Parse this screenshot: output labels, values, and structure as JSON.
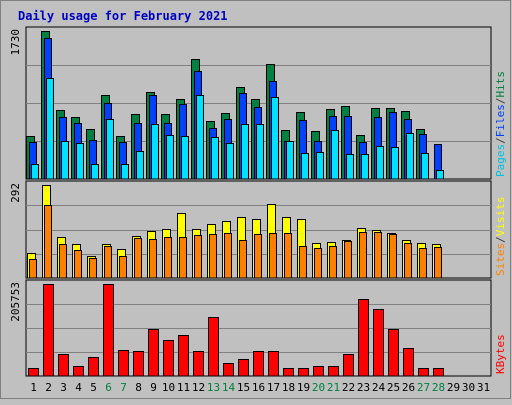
{
  "chart_data": {
    "type": "bar",
    "title": "Daily usage for February 2021",
    "x": {
      "days": [
        "1",
        "2",
        "3",
        "4",
        "5",
        "6",
        "7",
        "8",
        "9",
        "10",
        "11",
        "12",
        "13",
        "14",
        "15",
        "16",
        "17",
        "18",
        "19",
        "20",
        "21",
        "22",
        "23",
        "24",
        "25",
        "26",
        "27",
        "28",
        "29",
        "30",
        "31"
      ],
      "weekend_days": [
        "6",
        "7",
        "13",
        "14",
        "20",
        "21",
        "27",
        "28"
      ]
    },
    "panels": [
      {
        "id": "hits-files-pages",
        "max_label": "1730",
        "ylim": [
          0,
          1730
        ],
        "grid": true,
        "legend": [
          {
            "text": "Pages",
            "color": "#00c0e0"
          },
          {
            "text": "/",
            "color": "#404040"
          },
          {
            "text": "Files",
            "color": "#0040ff"
          },
          {
            "text": "/",
            "color": "#404040"
          },
          {
            "text": "Hits",
            "color": "#008040"
          }
        ],
        "series": [
          {
            "name": "Hits",
            "color": "#008040",
            "values": [
              500,
              1730,
              810,
              730,
              580,
              980,
              500,
              760,
              1020,
              760,
              940,
              1400,
              680,
              770,
              1080,
              930,
              1350,
              570,
              780,
              560,
              820,
              850,
              520,
              830,
              830,
              790,
              590,
              null,
              null,
              null,
              null
            ]
          },
          {
            "name": "Files",
            "color": "#0040ff",
            "values": [
              430,
              1650,
              720,
              650,
              460,
              890,
              430,
              650,
              980,
              650,
              880,
              1260,
              600,
              700,
              1000,
              840,
              1150,
              450,
              690,
              450,
              740,
              740,
              430,
              720,
              780,
              700,
              530,
              410,
              null,
              null,
              null
            ]
          },
          {
            "name": "Pages",
            "color": "#00e0ff",
            "values": [
              180,
              1180,
              440,
              420,
              170,
              700,
              170,
              330,
              640,
              510,
              500,
              980,
              490,
              420,
              640,
              640,
              960,
              440,
              300,
              310,
              570,
              290,
              290,
              380,
              370,
              540,
              300,
              110,
              null,
              null,
              null
            ]
          }
        ]
      },
      {
        "id": "visits-sites",
        "max_label": "292",
        "ylim": [
          0,
          292
        ],
        "grid": true,
        "legend": [
          {
            "text": "Sites",
            "color": "#ff8000"
          },
          {
            "text": "/",
            "color": "#404040"
          },
          {
            "text": "Visits",
            "color": "#ffff00"
          }
        ],
        "series": [
          {
            "name": "Visits",
            "color": "#ffff00",
            "values": [
              80,
              292,
              128,
              108,
              70,
              108,
              92,
              132,
              148,
              155,
              205,
              155,
              170,
              178,
              192,
              185,
              232,
              190,
              185,
              110,
              112,
              120,
              158,
              152,
              140,
              120,
              110,
              108,
              null,
              null,
              null
            ]
          },
          {
            "name": "Sites",
            "color": "#ff8000",
            "values": [
              60,
              230,
              108,
              88,
              62,
              100,
              70,
              125,
              122,
              128,
              130,
              135,
              138,
              140,
              118,
              138,
              142,
              140,
              100,
              95,
              100,
              115,
              145,
              145,
              138,
              110,
              95,
              97,
              null,
              null,
              null
            ]
          }
        ]
      },
      {
        "id": "kbytes",
        "max_label": "205753",
        "ylim": [
          0,
          205753
        ],
        "grid": true,
        "legend": [
          {
            "text": "KBytes",
            "color": "#ff0000"
          }
        ],
        "series": [
          {
            "name": "KBytes",
            "color": "#ff0000",
            "values": [
              18000,
              205753,
              50000,
              22000,
              43000,
              205000,
              59000,
              57000,
              104000,
              80000,
              91000,
              56000,
              133000,
              28000,
              38000,
              55000,
              56000,
              17000,
              19000,
              22000,
              22000,
              50000,
              173000,
              150000,
              106000,
              63000,
              18000,
              18000,
              null,
              null,
              null
            ]
          }
        ]
      }
    ]
  }
}
